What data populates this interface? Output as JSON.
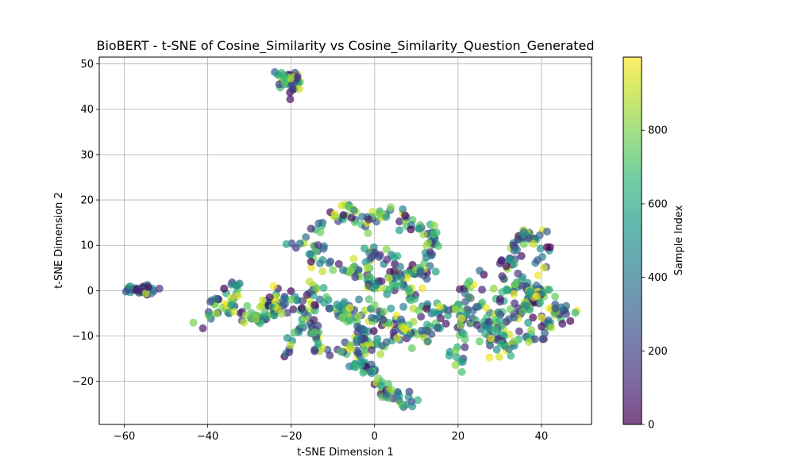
{
  "chart_data": {
    "type": "scatter",
    "title": "BioBERT - t-SNE of Cosine_Similarity vs Cosine_Similarity_Question_Generated",
    "xlabel": "t-SNE Dimension 1",
    "ylabel": "t-SNE Dimension 2",
    "xlim": [
      -66,
      52
    ],
    "ylim": [
      -29.5,
      51.5
    ],
    "xticks": [
      -60,
      -40,
      -20,
      0,
      20,
      40
    ],
    "yticks": [
      -20,
      -10,
      0,
      10,
      20,
      30,
      40,
      50
    ],
    "grid": true,
    "marker_alpha": 0.7,
    "colormap": "viridis",
    "color_value_range": [
      0,
      999
    ],
    "colorbar": {
      "label": "Sample Index",
      "ticks": [
        0,
        200,
        400,
        600,
        800
      ]
    },
    "colormap_stops": [
      "#440154",
      "#482878",
      "#3e4989",
      "#31688e",
      "#26828e",
      "#1f9e89",
      "#35b779",
      "#6ece58",
      "#b5de2b",
      "#fde725"
    ],
    "sample_count": 1000,
    "clusters": [
      {
        "center": [
          -21,
          46
        ],
        "spread": [
          1.5,
          1.3
        ],
        "count": 45,
        "shape": "blob"
      },
      {
        "center": [
          -56.5,
          0.2
        ],
        "spread": [
          2.2,
          0.6
        ],
        "count": 35,
        "shape": "blob"
      },
      {
        "shape": "path",
        "path": [
          [
            -40,
            -7
          ],
          [
            -37,
            -2
          ],
          [
            -33,
            -4
          ],
          [
            -29,
            -6
          ],
          [
            -25,
            -2
          ],
          [
            -22,
            -1
          ],
          [
            -19,
            -3
          ],
          [
            -16,
            -7
          ],
          [
            -14,
            -10
          ],
          [
            -13,
            -13
          ]
        ],
        "spread": [
          1.1,
          1.1
        ],
        "count": 95
      },
      {
        "shape": "path",
        "path": [
          [
            -21,
            -15
          ],
          [
            -18,
            -9
          ],
          [
            -16,
            -2
          ],
          [
            -14,
            4
          ],
          [
            -15,
            9
          ],
          [
            -13,
            15
          ],
          [
            -9,
            17
          ],
          [
            -5,
            17
          ],
          [
            -2,
            15
          ],
          [
            2,
            17
          ],
          [
            5,
            16
          ],
          [
            10,
            15
          ],
          [
            13,
            13
          ],
          [
            15,
            11
          ]
        ],
        "spread": [
          1.0,
          1.0
        ],
        "count": 110
      },
      {
        "shape": "path",
        "path": [
          [
            -20,
            11
          ],
          [
            -18,
            8
          ],
          [
            -13,
            8
          ],
          [
            -10,
            7
          ],
          [
            -6,
            4
          ],
          [
            -3,
            6
          ],
          [
            0,
            9
          ],
          [
            3,
            8
          ],
          [
            6,
            4
          ],
          [
            9,
            3
          ],
          [
            12,
            4
          ],
          [
            14,
            9
          ],
          [
            12,
            13
          ]
        ],
        "spread": [
          1.2,
          1.2
        ],
        "count": 90
      },
      {
        "shape": "path",
        "path": [
          [
            -10,
            -5
          ],
          [
            -7,
            -6
          ],
          [
            -4,
            -8
          ],
          [
            -3,
            -12
          ],
          [
            -5,
            -15
          ],
          [
            -3,
            -17
          ],
          [
            0,
            -18
          ],
          [
            1,
            -21
          ],
          [
            3,
            -23
          ],
          [
            6,
            -24
          ],
          [
            8,
            -25
          ]
        ],
        "spread": [
          1.0,
          1.0
        ],
        "count": 85
      },
      {
        "shape": "path",
        "path": [
          [
            -9,
            -13
          ],
          [
            -6,
            -13
          ],
          [
            -2,
            -11
          ],
          [
            1,
            -13
          ],
          [
            4,
            -10
          ],
          [
            6,
            -7
          ],
          [
            8,
            -9
          ],
          [
            10,
            -11
          ],
          [
            13,
            -10
          ],
          [
            15,
            -5
          ],
          [
            17,
            -3
          ]
        ],
        "spread": [
          1.2,
          1.2
        ],
        "count": 85
      },
      {
        "shape": "path",
        "path": [
          [
            -4,
            2
          ],
          [
            -2,
            4
          ],
          [
            0,
            1
          ],
          [
            3,
            2
          ],
          [
            6,
            2
          ],
          [
            8,
            0
          ],
          [
            10,
            -3
          ],
          [
            12,
            -6
          ]
        ],
        "spread": [
          1.3,
          1.3
        ],
        "count": 60
      },
      {
        "shape": "path",
        "path": [
          [
            19,
            -18
          ],
          [
            20,
            -14
          ],
          [
            21,
            -10
          ],
          [
            21,
            -6
          ],
          [
            22,
            -2
          ],
          [
            24,
            2
          ],
          [
            25,
            4
          ]
        ],
        "spread": [
          1.2,
          1.2
        ],
        "count": 50
      },
      {
        "shape": "path",
        "path": [
          [
            22,
            -8
          ],
          [
            25,
            -6
          ],
          [
            27,
            -3
          ],
          [
            30,
            -1
          ],
          [
            33,
            1
          ],
          [
            35,
            2
          ],
          [
            37,
            1
          ],
          [
            39,
            0
          ],
          [
            41,
            0
          ]
        ],
        "spread": [
          1.4,
          1.4
        ],
        "count": 70
      },
      {
        "shape": "path",
        "path": [
          [
            30,
            -14
          ],
          [
            32,
            -12
          ],
          [
            35,
            -11
          ],
          [
            38,
            -10
          ],
          [
            40,
            -8
          ],
          [
            42,
            -6
          ],
          [
            44,
            -5
          ],
          [
            46,
            -6
          ]
        ],
        "spread": [
          1.3,
          1.3
        ],
        "count": 60
      },
      {
        "shape": "path",
        "path": [
          [
            31,
            5
          ],
          [
            33,
            8
          ],
          [
            35,
            11
          ],
          [
            37,
            13
          ],
          [
            39,
            12
          ],
          [
            40,
            8
          ],
          [
            39,
            4
          ]
        ],
        "spread": [
          1.2,
          1.2
        ],
        "count": 50
      },
      {
        "shape": "path",
        "path": [
          [
            30,
            -8
          ],
          [
            33,
            -6
          ],
          [
            36,
            -4
          ],
          [
            38,
            -3
          ],
          [
            37,
            -1
          ]
        ],
        "spread": [
          1.3,
          1.3
        ],
        "count": 40
      },
      {
        "shape": "path",
        "path": [
          [
            27,
            -12
          ],
          [
            28,
            -10
          ],
          [
            30,
            -6
          ]
        ],
        "spread": [
          1.2,
          1.2
        ],
        "count": 25
      },
      {
        "shape": "path",
        "path": [
          [
            -28,
            -7
          ],
          [
            -26,
            -5
          ],
          [
            -24,
            -4
          ],
          [
            -22,
            -3
          ]
        ],
        "spread": [
          1.0,
          1.0
        ],
        "count": 30
      },
      {
        "shape": "path",
        "path": [
          [
            -12,
            0
          ],
          [
            -10,
            -3
          ],
          [
            -7,
            -4
          ],
          [
            -5,
            -5
          ]
        ],
        "spread": [
          1.2,
          1.2
        ],
        "count": 30
      },
      {
        "shape": "path",
        "path": [
          [
            -2,
            -2
          ],
          [
            0,
            -6
          ],
          [
            2,
            -8
          ],
          [
            4,
            -5
          ]
        ],
        "spread": [
          1.2,
          1.2
        ],
        "count": 25
      },
      {
        "shape": "path",
        "path": [
          [
            -36,
            -3
          ],
          [
            -34,
            0
          ],
          [
            -33,
            1
          ]
        ],
        "spread": [
          1.0,
          1.0
        ],
        "count": 15
      }
    ]
  }
}
